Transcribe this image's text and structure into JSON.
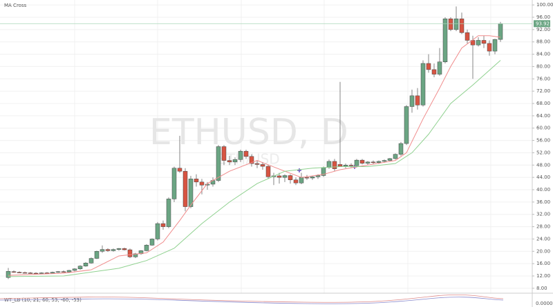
{
  "chart_data": {
    "type": "candlestick",
    "title": "MA Cross",
    "watermark": "ETHUSD, D",
    "subtitle": "ETH/USD",
    "indicator_label": "WT_LB (10, 21, 60, 53, -60, -53)",
    "indicator_axis_label": "0.0000",
    "last_price": 93.92,
    "last_price_label": "93.92",
    "up_color": "#6ba583",
    "down_color": "#d75442",
    "grid": true,
    "ylim": [
      6.4,
      101.6
    ],
    "yticks": [
      {
        "value": 8,
        "label": "8.00"
      },
      {
        "value": 12,
        "label": "12.00"
      },
      {
        "value": 16,
        "label": "16.00"
      },
      {
        "value": 20,
        "label": "20.00"
      },
      {
        "value": 24,
        "label": "24.00"
      },
      {
        "value": 28,
        "label": "28.00"
      },
      {
        "value": 32,
        "label": "32.00"
      },
      {
        "value": 36,
        "label": "36.00"
      },
      {
        "value": 40,
        "label": "40.00"
      },
      {
        "value": 44,
        "label": "44.00"
      },
      {
        "value": 48,
        "label": "48.00"
      },
      {
        "value": 52,
        "label": "52.00"
      },
      {
        "value": 56,
        "label": "56.00"
      },
      {
        "value": 60,
        "label": "60.00"
      },
      {
        "value": 64,
        "label": "64.00"
      },
      {
        "value": 68,
        "label": "68.00"
      },
      {
        "value": 72,
        "label": "72.00"
      },
      {
        "value": 76,
        "label": "76.00"
      },
      {
        "value": 80,
        "label": "80.00"
      },
      {
        "value": 84,
        "label": "84.00"
      },
      {
        "value": 88,
        "label": "88.00"
      },
      {
        "value": 92,
        "label": "92.00"
      },
      {
        "value": 96,
        "label": "96.00"
      },
      {
        "value": 100,
        "label": "100.00"
      }
    ],
    "open": [
      11.5,
      13.4,
      13.2,
      13.1,
      13,
      12.9,
      12.8,
      13,
      12.9,
      13.2,
      13.4,
      13.3,
      13.8,
      14.3,
      15.2,
      16.2,
      17.7,
      20,
      20.6,
      20.2,
      20.6,
      20.9,
      20.5,
      18.2,
      19.2,
      20.2,
      22,
      24,
      29,
      28,
      37,
      47,
      46,
      34.5,
      43.5,
      42.5,
      41.5,
      41.8,
      43,
      54,
      49.5,
      49,
      49.8,
      52.5,
      50.8,
      48.5,
      48.2,
      47.6,
      44.2,
      44.5,
      44,
      44.6,
      43.2,
      42.2,
      44,
      43.8,
      44.2,
      44.6,
      47.2,
      49.2,
      48.2,
      47.6,
      48,
      47.8,
      49.6,
      48.6,
      49,
      48.8,
      49.2,
      49.5,
      50.1,
      51.5,
      55,
      67,
      70.5,
      67.5,
      81,
      79,
      77.5,
      81.5,
      95.5,
      92,
      95.5,
      91,
      88.5,
      87,
      88.5,
      87.5,
      85,
      88.8
    ],
    "high": [
      14.6,
      13.8,
      13.5,
      13.4,
      13.3,
      13.2,
      13.2,
      13.3,
      13.4,
      13.6,
      13.8,
      14,
      14.5,
      15.5,
      16.5,
      18,
      20.2,
      21.9,
      21,
      20.9,
      21.1,
      21.2,
      20.9,
      19.5,
      20.4,
      22.3,
      24.2,
      29.5,
      30,
      37.5,
      47.5,
      57.5,
      47,
      44.5,
      45,
      43.5,
      42.5,
      44,
      54.5,
      54.5,
      51,
      50.5,
      53,
      53,
      51.5,
      49.5,
      49,
      48.2,
      45.5,
      45.5,
      45,
      45,
      44,
      45.5,
      44.8,
      44.5,
      45,
      47.5,
      49.8,
      50,
      75,
      48.5,
      48.6,
      50,
      50,
      49.3,
      49.5,
      49.5,
      49.8,
      50.3,
      51.8,
      55.5,
      67.5,
      72.5,
      73,
      82,
      84,
      81,
      86,
      96,
      96,
      99.5,
      97.5,
      92,
      90,
      89.5,
      90,
      88.5,
      89,
      94.5
    ],
    "low": [
      11,
      13,
      12.9,
      12.8,
      12.8,
      12.6,
      12.6,
      12.8,
      12.7,
      13,
      13.1,
      13.1,
      13.5,
      14,
      15,
      16,
      17.5,
      19.5,
      19.8,
      19.9,
      20.2,
      20.3,
      17.8,
      17.8,
      18.9,
      20,
      21.8,
      23.5,
      27,
      27.5,
      36,
      45.5,
      33,
      34,
      41,
      38.5,
      40,
      41,
      42.5,
      48,
      48,
      48,
      49,
      50,
      47.5,
      47,
      46.5,
      43.5,
      41.5,
      42,
      42.5,
      42,
      41.5,
      41.8,
      43.2,
      43.2,
      43.5,
      44.2,
      46.8,
      46,
      47.5,
      47,
      47.2,
      47.5,
      48.2,
      48,
      48.3,
      48.4,
      48.8,
      49.2,
      49.8,
      51,
      54.5,
      65,
      66,
      67,
      78,
      76.5,
      77,
      81,
      91.5,
      91.5,
      90.5,
      87.5,
      76,
      86.5,
      86,
      83.5,
      84,
      88
    ],
    "close": [
      13.5,
      13.2,
      13.1,
      13,
      12.9,
      12.8,
      13,
      12.9,
      13.2,
      13.4,
      13.3,
      13.8,
      14.3,
      15.2,
      16.2,
      17.7,
      20,
      20.6,
      20.2,
      20.6,
      20.9,
      20.5,
      18.2,
      19.2,
      20.2,
      22,
      24,
      29,
      28,
      37,
      47,
      46,
      34.5,
      43.5,
      42.5,
      41.5,
      41.8,
      43,
      54,
      49.5,
      49,
      49.8,
      52.5,
      50.8,
      48.5,
      48.2,
      47.6,
      44.2,
      44.5,
      44,
      44.6,
      43.2,
      42.2,
      44,
      43.8,
      44.2,
      44.6,
      47.2,
      49.2,
      46.8,
      47.6,
      48,
      47.8,
      49.6,
      48.6,
      49,
      48.8,
      49.2,
      49.5,
      50.1,
      51.5,
      55,
      67,
      70.5,
      67.5,
      81,
      79,
      77.5,
      81.5,
      95.5,
      92,
      95.5,
      91,
      88.5,
      87,
      88.5,
      87.5,
      85,
      88.8,
      93.9
    ],
    "lines": [
      {
        "color": "#f08a8a",
        "x": [
          0,
          10,
          15,
          20,
          25,
          28,
          31,
          33,
          36,
          40,
          45,
          50,
          53,
          57,
          60,
          65,
          70,
          72,
          75,
          78,
          80,
          82,
          85,
          87,
          89
        ],
        "values": [
          12.2,
          12.9,
          14,
          18.5,
          19.5,
          23,
          30,
          35,
          42,
          46,
          49.5,
          46,
          44,
          45,
          46.5,
          48,
          49.5,
          52,
          63,
          73,
          80,
          86,
          90,
          90,
          89.5
        ]
      },
      {
        "color": "#8fd18f",
        "x": [
          0,
          10,
          20,
          25,
          30,
          35,
          40,
          45,
          50,
          55,
          60,
          65,
          70,
          73,
          76,
          80,
          84,
          89
        ],
        "values": [
          11.8,
          12,
          14.5,
          17,
          21,
          29,
          36,
          42,
          46,
          47,
          47.5,
          47.5,
          48.5,
          52,
          58,
          68,
          74,
          82
        ]
      }
    ]
  }
}
